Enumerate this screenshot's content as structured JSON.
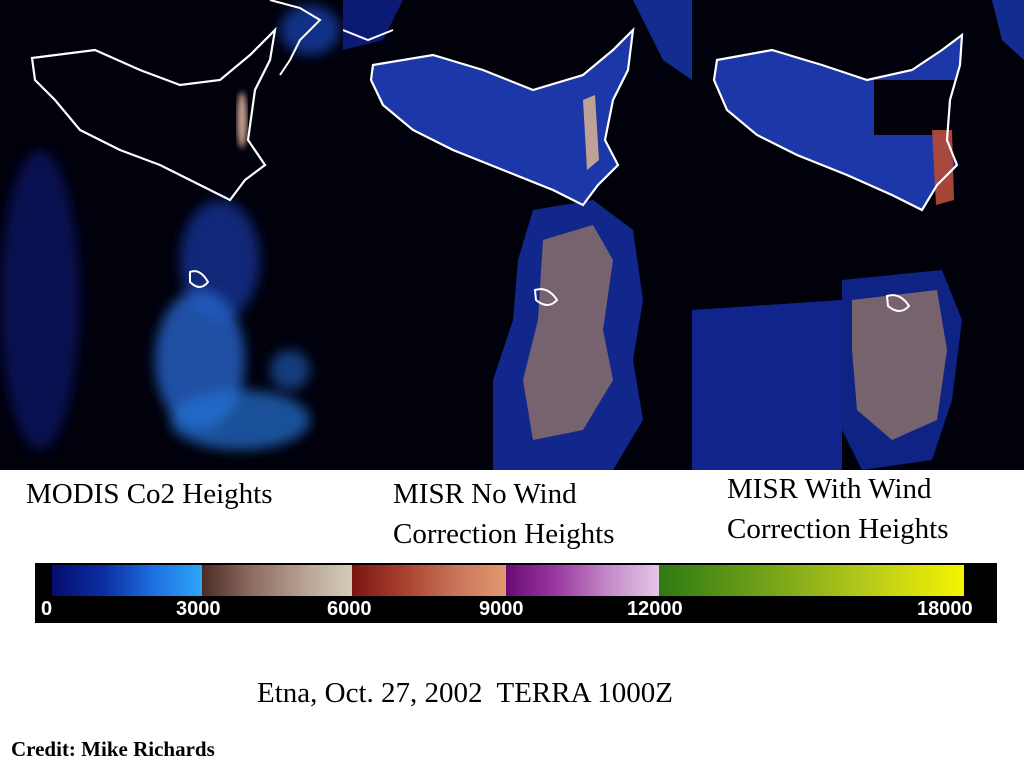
{
  "panels": [
    {
      "name": "modis",
      "caption": "MODIS Co2 Heights"
    },
    {
      "name": "misr-nowind",
      "caption_line1": "MISR No Wind",
      "caption_line2": "Correction Heights"
    },
    {
      "name": "misr-wind",
      "caption_line1": "MISR With Wind",
      "caption_line2": "Correction Heights"
    }
  ],
  "colorbar": {
    "ticks": [
      "0",
      "3000",
      "6000",
      "9000",
      "12000",
      "18000"
    ],
    "colors": {
      "low": "#2ea6f6",
      "mid": "#d3cdb8",
      "high_red": "#e29a6e",
      "high_purple": "#c48ac8",
      "top": "#f6f400"
    }
  },
  "title": "Etna, Oct. 27, 2002  TERRA 1000Z",
  "credit": "Credit: Mike Richards"
}
